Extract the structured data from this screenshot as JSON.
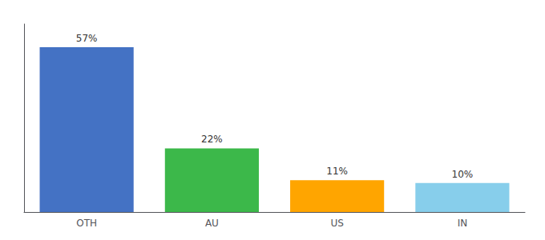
{
  "chart_data": {
    "type": "bar",
    "categories": [
      "OTH",
      "AU",
      "US",
      "IN"
    ],
    "values": [
      57,
      22,
      11,
      10
    ],
    "value_labels": [
      "57%",
      "22%",
      "11%",
      "10%"
    ],
    "colors": [
      "#4472C4",
      "#3CB84A",
      "#FFA500",
      "#87CEEB"
    ],
    "data_labels": true,
    "ylim": [
      0,
      65
    ],
    "tick_labels": "x",
    "grid": false
  }
}
